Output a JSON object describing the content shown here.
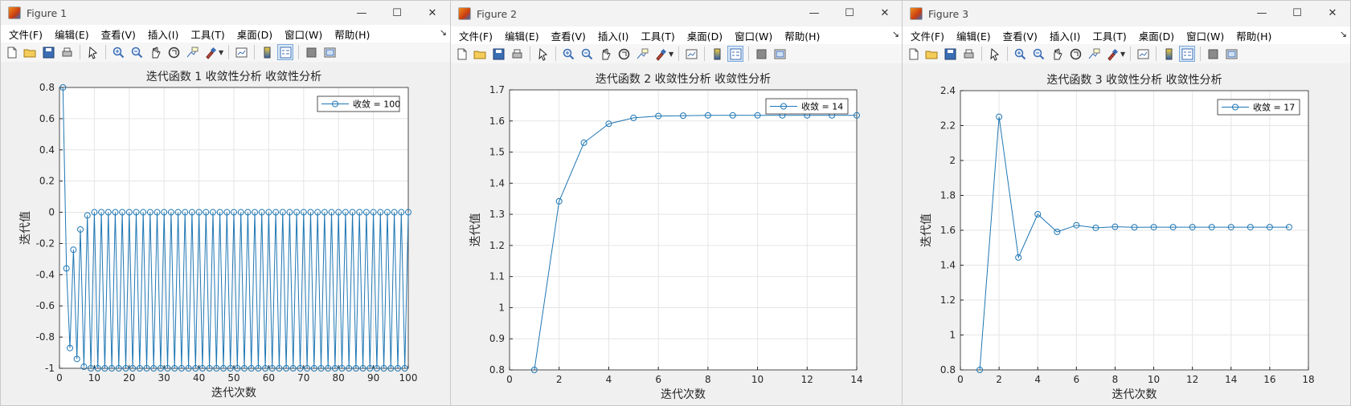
{
  "menu_labels": [
    "文件(F)",
    "编辑(E)",
    "查看(V)",
    "插入(I)",
    "工具(T)",
    "桌面(D)",
    "窗口(W)",
    "帮助(H)"
  ],
  "window_controls": {
    "minimize": "—",
    "maximize": "☐",
    "close": "✕"
  },
  "toolbar_icons": [
    "new-figure-icon",
    "open-file-icon",
    "save-icon",
    "print-icon",
    "pointer-icon",
    "zoom-in-icon",
    "zoom-out-icon",
    "pan-icon",
    "rotate-3d-icon",
    "data-cursor-icon",
    "brush-icon",
    "link-plot-icon",
    "colorbar-icon",
    "legend-icon",
    "hide-plot-tools-icon",
    "show-plot-tools-icon"
  ],
  "colors": {
    "line": "#1f77b4",
    "grid": "#e5e5e5",
    "axis": "#262626"
  },
  "figures": [
    {
      "window_title": "Figure 1",
      "chart_data": {
        "type": "line",
        "title": "迭代函数 1 收敛性分析 收敛性分析",
        "xlabel": "迭代次数",
        "ylabel": "迭代值",
        "xlim": [
          0,
          100
        ],
        "ylim": [
          -1,
          0.8
        ],
        "xticks": [
          0,
          10,
          20,
          30,
          40,
          50,
          60,
          70,
          80,
          90,
          100
        ],
        "yticks": [
          -1,
          -0.8,
          -0.6,
          -0.4,
          -0.2,
          0,
          0.2,
          0.4,
          0.6,
          0.8
        ],
        "xtick_labels": [
          "0",
          "10",
          "20",
          "30",
          "40",
          "50",
          "60",
          "70",
          "80",
          "90",
          "100"
        ],
        "ytick_labels": [
          "-1",
          "-0.8",
          "-0.6",
          "-0.4",
          "-0.2",
          "0",
          "0.2",
          "0.4",
          "0.6",
          "0.8"
        ],
        "grid": true,
        "legend_position": "top-right",
        "series": [
          {
            "name": "收敛 = 100",
            "marker": "circle",
            "x": [
              1,
              2,
              3,
              4,
              5,
              6,
              7,
              8,
              9,
              10,
              11,
              12,
              13,
              14,
              15,
              16,
              17,
              18,
              19,
              20,
              21,
              22,
              23,
              24,
              25,
              26,
              27,
              28,
              29,
              30,
              31,
              32,
              33,
              34,
              35,
              36,
              37,
              38,
              39,
              40,
              41,
              42,
              43,
              44,
              45,
              46,
              47,
              48,
              49,
              50,
              51,
              52,
              53,
              54,
              55,
              56,
              57,
              58,
              59,
              60,
              61,
              62,
              63,
              64,
              65,
              66,
              67,
              68,
              69,
              70,
              71,
              72,
              73,
              74,
              75,
              76,
              77,
              78,
              79,
              80,
              81,
              82,
              83,
              84,
              85,
              86,
              87,
              88,
              89,
              90,
              91,
              92,
              93,
              94,
              95,
              96,
              97,
              98,
              99,
              100
            ],
            "y": [
              0.8,
              -0.36,
              -0.87,
              -0.24,
              -0.94,
              -0.11,
              -0.99,
              -0.02,
              -1,
              0,
              -1,
              0,
              -1,
              0,
              -1,
              0,
              -1,
              0,
              -1,
              0,
              -1,
              0,
              -1,
              0,
              -1,
              0,
              -1,
              0,
              -1,
              0,
              -1,
              0,
              -1,
              0,
              -1,
              0,
              -1,
              0,
              -1,
              0,
              -1,
              0,
              -1,
              0,
              -1,
              0,
              -1,
              0,
              -1,
              0,
              -1,
              0,
              -1,
              0,
              -1,
              0,
              -1,
              0,
              -1,
              0,
              -1,
              0,
              -1,
              0,
              -1,
              0,
              -1,
              0,
              -1,
              0,
              -1,
              0,
              -1,
              0,
              -1,
              0,
              -1,
              0,
              -1,
              0,
              -1,
              0,
              -1,
              0,
              -1,
              0,
              -1,
              0,
              -1,
              0,
              -1,
              0,
              -1,
              0,
              -1,
              0,
              -1,
              0,
              -1,
              0
            ]
          }
        ]
      }
    },
    {
      "window_title": "Figure 2",
      "chart_data": {
        "type": "line",
        "title": "迭代函数 2 收敛性分析 收敛性分析",
        "xlabel": "迭代次数",
        "ylabel": "迭代值",
        "xlim": [
          0,
          14
        ],
        "ylim": [
          0.8,
          1.7
        ],
        "xticks": [
          0,
          2,
          4,
          6,
          8,
          10,
          12,
          14
        ],
        "yticks": [
          0.8,
          0.9,
          1,
          1.1,
          1.2,
          1.3,
          1.4,
          1.5,
          1.6,
          1.7
        ],
        "xtick_labels": [
          "0",
          "2",
          "4",
          "6",
          "8",
          "10",
          "12",
          "14"
        ],
        "ytick_labels": [
          "0.8",
          "0.9",
          "1",
          "1.1",
          "1.2",
          "1.3",
          "1.4",
          "1.5",
          "1.6",
          "1.7"
        ],
        "grid": true,
        "legend_position": "top-right",
        "series": [
          {
            "name": "收敛 = 14",
            "marker": "circle",
            "x": [
              1,
              2,
              3,
              4,
              5,
              6,
              7,
              8,
              9,
              10,
              11,
              12,
              13,
              14
            ],
            "y": [
              0.8,
              1.342,
              1.53,
              1.591,
              1.61,
              1.616,
              1.617,
              1.618,
              1.618,
              1.618,
              1.618,
              1.618,
              1.618,
              1.618
            ]
          }
        ]
      }
    },
    {
      "window_title": "Figure 3",
      "chart_data": {
        "type": "line",
        "title": "迭代函数 3 收敛性分析 收敛性分析",
        "xlabel": "迭代次数",
        "ylabel": "迭代值",
        "xlim": [
          0,
          18
        ],
        "ylim": [
          0.8,
          2.4
        ],
        "xticks": [
          0,
          2,
          4,
          6,
          8,
          10,
          12,
          14,
          16,
          18
        ],
        "yticks": [
          0.8,
          1,
          1.2,
          1.4,
          1.6,
          1.8,
          2,
          2.2,
          2.4
        ],
        "xtick_labels": [
          "0",
          "2",
          "4",
          "6",
          "8",
          "10",
          "12",
          "14",
          "16",
          "18"
        ],
        "ytick_labels": [
          "0.8",
          "1",
          "1.2",
          "1.4",
          "1.6",
          "1.8",
          "2",
          "2.2",
          "2.4"
        ],
        "grid": true,
        "legend_position": "top-right",
        "series": [
          {
            "name": "收敛 = 17",
            "marker": "circle",
            "x": [
              1,
              2,
              3,
              4,
              5,
              6,
              7,
              8,
              9,
              10,
              11,
              12,
              13,
              14,
              15,
              16,
              17
            ],
            "y": [
              0.8,
              2.25,
              1.444,
              1.692,
              1.591,
              1.629,
              1.614,
              1.62,
              1.617,
              1.618,
              1.618,
              1.618,
              1.618,
              1.618,
              1.618,
              1.618,
              1.618
            ]
          }
        ]
      }
    }
  ]
}
